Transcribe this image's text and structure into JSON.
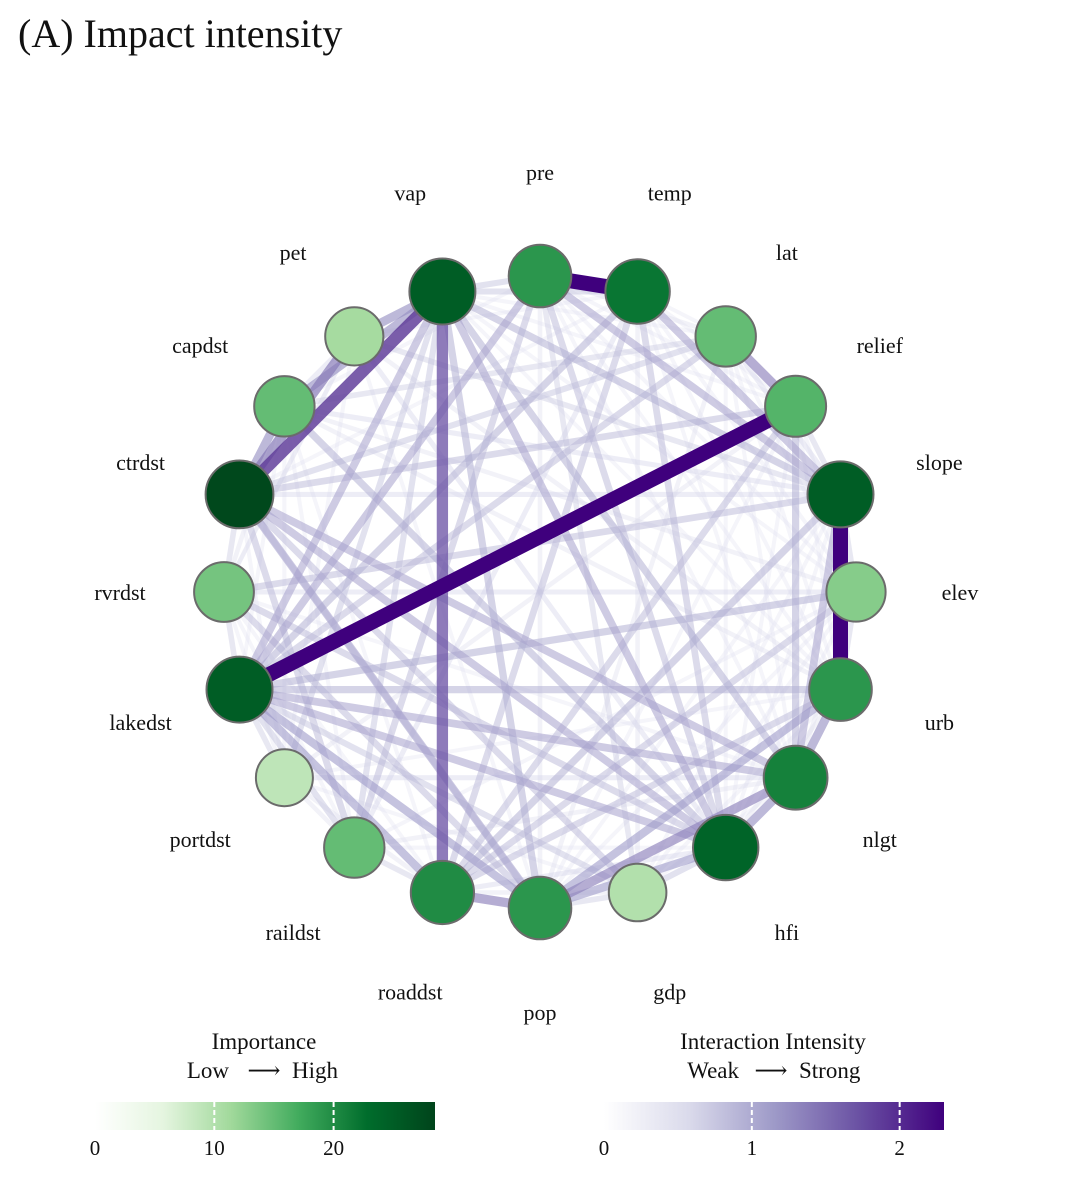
{
  "title": "(A) Impact intensity",
  "chart_data": {
    "type": "network",
    "nodes": [
      {
        "name": "pre",
        "importance": 19
      },
      {
        "name": "temp",
        "importance": 22
      },
      {
        "name": "lat",
        "importance": 15
      },
      {
        "name": "relief",
        "importance": 16
      },
      {
        "name": "slope",
        "importance": 25
      },
      {
        "name": "elev",
        "importance": 13
      },
      {
        "name": "urb",
        "importance": 19
      },
      {
        "name": "nlgt",
        "importance": 21
      },
      {
        "name": "hfi",
        "importance": 24
      },
      {
        "name": "gdp",
        "importance": 10
      },
      {
        "name": "pop",
        "importance": 19
      },
      {
        "name": "roaddst",
        "importance": 20
      },
      {
        "name": "raildst",
        "importance": 15
      },
      {
        "name": "portdst",
        "importance": 9
      },
      {
        "name": "lakedst",
        "importance": 25
      },
      {
        "name": "rvrdst",
        "importance": 14
      },
      {
        "name": "ctrdst",
        "importance": 28
      },
      {
        "name": "capdst",
        "importance": 15
      },
      {
        "name": "pet",
        "importance": 11
      },
      {
        "name": "vap",
        "importance": 25
      }
    ],
    "edges": [
      {
        "a": "pre",
        "b": "temp",
        "value": 2.3
      },
      {
        "a": "relief",
        "b": "lakedst",
        "value": 2.3
      },
      {
        "a": "slope",
        "b": "urb",
        "value": 2.3
      },
      {
        "a": "vap",
        "b": "ctrdst",
        "value": 1.8
      },
      {
        "a": "vap",
        "b": "roaddst",
        "value": 1.6
      },
      {
        "a": "ctrdst",
        "b": "pet",
        "value": 1.3
      },
      {
        "a": "vap",
        "b": "capdst",
        "value": 1.1
      },
      {
        "a": "capdst",
        "b": "ctrdst",
        "value": 1.1
      },
      {
        "a": "vap",
        "b": "pet",
        "value": 1.1
      },
      {
        "a": "lat",
        "b": "relief",
        "value": 1.2
      },
      {
        "a": "urb",
        "b": "nlgt",
        "value": 1.1
      },
      {
        "a": "nlgt",
        "b": "hfi",
        "value": 1.1
      },
      {
        "a": "roaddst",
        "b": "pop",
        "value": 1.2
      },
      {
        "a": "pop",
        "b": "nlgt",
        "value": 1.2
      },
      {
        "a": "pop",
        "b": "urb",
        "value": 1.0
      },
      {
        "a": "pop",
        "b": "hfi",
        "value": 1.0
      },
      {
        "a": "lakedst",
        "b": "roaddst",
        "value": 1.0
      },
      {
        "a": "lakedst",
        "b": "pop",
        "value": 1.0
      },
      {
        "a": "lakedst",
        "b": "hfi",
        "value": 0.9
      },
      {
        "a": "lakedst",
        "b": "nlgt",
        "value": 0.9
      },
      {
        "a": "lakedst",
        "b": "urb",
        "value": 0.8
      },
      {
        "a": "ctrdst",
        "b": "nlgt",
        "value": 0.9
      },
      {
        "a": "ctrdst",
        "b": "hfi",
        "value": 0.9
      },
      {
        "a": "ctrdst",
        "b": "pop",
        "value": 0.9
      },
      {
        "a": "vap",
        "b": "hfi",
        "value": 0.9
      },
      {
        "a": "vap",
        "b": "nlgt",
        "value": 0.8
      },
      {
        "a": "vap",
        "b": "lakedst",
        "value": 0.9
      },
      {
        "a": "vap",
        "b": "slope",
        "value": 0.8
      },
      {
        "a": "vap",
        "b": "pop",
        "value": 0.8
      },
      {
        "a": "pre",
        "b": "slope",
        "value": 0.9
      },
      {
        "a": "pre",
        "b": "lakedst",
        "value": 0.9
      },
      {
        "a": "pre",
        "b": "raildst",
        "value": 0.7
      },
      {
        "a": "pre",
        "b": "hfi",
        "value": 0.7
      },
      {
        "a": "temp",
        "b": "slope",
        "value": 0.9
      },
      {
        "a": "temp",
        "b": "lakedst",
        "value": 0.8
      },
      {
        "a": "temp",
        "b": "roaddst",
        "value": 0.7
      },
      {
        "a": "temp",
        "b": "hfi",
        "value": 0.7
      },
      {
        "a": "relief",
        "b": "nlgt",
        "value": 0.8
      },
      {
        "a": "relief",
        "b": "roaddst",
        "value": 0.7
      },
      {
        "a": "slope",
        "b": "nlgt",
        "value": 0.9
      },
      {
        "a": "slope",
        "b": "roaddst",
        "value": 0.8
      },
      {
        "a": "slope",
        "b": "rvrdst",
        "value": 0.7
      },
      {
        "a": "elev",
        "b": "lakedst",
        "value": 0.8
      },
      {
        "a": "elev",
        "b": "roaddst",
        "value": 0.7
      },
      {
        "a": "urb",
        "b": "roaddst",
        "value": 0.7
      },
      {
        "a": "hfi",
        "b": "capdst",
        "value": 0.8
      },
      {
        "a": "gdp",
        "b": "ctrdst",
        "value": 0.7
      },
      {
        "a": "raildst",
        "b": "ctrdst",
        "value": 0.7
      },
      {
        "a": "raildst",
        "b": "vap",
        "value": 0.6
      },
      {
        "a": "portdst",
        "b": "vap",
        "value": 0.6
      },
      {
        "a": "rvrdst",
        "b": "hfi",
        "value": 0.7
      },
      {
        "a": "rvrdst",
        "b": "pop",
        "value": 0.7
      },
      {
        "a": "lat",
        "b": "lakedst",
        "value": 0.7
      },
      {
        "a": "lat",
        "b": "ctrdst",
        "value": 0.6
      },
      {
        "a": "relief",
        "b": "ctrdst",
        "value": 0.7
      },
      {
        "a": "pet",
        "b": "slope",
        "value": 0.5
      },
      {
        "a": "capdst",
        "b": "lat",
        "value": 0.5
      },
      {
        "a": "gdp",
        "b": "lakedst",
        "value": 0.6
      },
      {
        "a": "gdp",
        "b": "pre",
        "value": 0.5
      },
      {
        "a": "pop",
        "b": "ctrdst",
        "value": 0.6
      },
      {
        "a": "pre",
        "b": "vap",
        "value": 0.6
      },
      {
        "a": "temp",
        "b": "vap",
        "value": 0.6
      },
      {
        "a": "lakedst",
        "b": "raildst",
        "value": 0.6
      },
      {
        "a": "lakedst",
        "b": "portdst",
        "value": 0.5
      },
      {
        "a": "lakedst",
        "b": "rvrdst",
        "value": 0.5
      },
      {
        "a": "hfi",
        "b": "gdp",
        "value": 0.6
      },
      {
        "a": "gdp",
        "b": "pop",
        "value": 0.5
      },
      {
        "a": "raildst",
        "b": "roaddst",
        "value": 0.5
      },
      {
        "a": "elev",
        "b": "urb",
        "value": 0.5
      },
      {
        "a": "slope",
        "b": "elev",
        "value": 0.5
      },
      {
        "a": "ctrdst",
        "b": "slope",
        "value": 0.4
      },
      {
        "a": "capdst",
        "b": "slope",
        "value": 0.4
      },
      {
        "a": "rvrdst",
        "b": "elev",
        "value": 0.4
      },
      {
        "a": "ctrdst",
        "b": "rvrdst",
        "value": 0.5
      },
      {
        "a": "portdst",
        "b": "nlgt",
        "value": 0.4
      },
      {
        "a": "temp",
        "b": "raildst",
        "value": 0.4
      },
      {
        "a": "pet",
        "b": "hfi",
        "value": 0.4
      },
      {
        "a": "urb",
        "b": "capdst",
        "value": 0.3
      },
      {
        "a": "portdst",
        "b": "relief",
        "value": 0.3
      },
      {
        "a": "lat",
        "b": "pop",
        "value": 0.3
      },
      {
        "a": "pre",
        "b": "pop",
        "value": 0.3
      },
      {
        "a": "temp",
        "b": "gdp",
        "value": 0.3
      },
      {
        "a": "elev",
        "b": "capdst",
        "value": 0.3
      },
      {
        "a": "urb",
        "b": "pet",
        "value": 0.3
      },
      {
        "a": "nlgt",
        "b": "raildst",
        "value": 0.3
      },
      {
        "a": "lat",
        "b": "slope",
        "value": 0.4
      },
      {
        "a": "relief",
        "b": "slope",
        "value": 0.5
      },
      {
        "a": "roaddst",
        "b": "hfi",
        "value": 0.4
      },
      {
        "a": "pet",
        "b": "capdst",
        "value": 0.4
      },
      {
        "a": "rvrdst",
        "b": "capdst",
        "value": 0.3
      },
      {
        "a": "raildst",
        "b": "portdst",
        "value": 0.3
      },
      {
        "a": "portdst",
        "b": "roaddst",
        "value": 0.3
      },
      {
        "a": "pre",
        "b": "lat",
        "value": 0.3
      },
      {
        "a": "hfi",
        "b": "urb",
        "value": 0.3
      },
      {
        "a": "elev",
        "b": "nlgt",
        "value": 0.3
      },
      {
        "a": "pet",
        "b": "rvrdst",
        "value": 0.3
      },
      {
        "a": "gdp",
        "b": "roaddst",
        "value": 0.3
      },
      {
        "a": "pre",
        "b": "elev",
        "value": 0.2
      },
      {
        "a": "temp",
        "b": "urb",
        "value": 0.2
      },
      {
        "a": "lat",
        "b": "hfi",
        "value": 0.2
      },
      {
        "a": "relief",
        "b": "pop",
        "value": 0.2
      },
      {
        "a": "slope",
        "b": "gdp",
        "value": 0.2
      },
      {
        "a": "elev",
        "b": "raildst",
        "value": 0.2
      },
      {
        "a": "urb",
        "b": "portdst",
        "value": 0.2
      },
      {
        "a": "nlgt",
        "b": "rvrdst",
        "value": 0.2
      },
      {
        "a": "hfi",
        "b": "raildst",
        "value": 0.2
      },
      {
        "a": "gdp",
        "b": "portdst",
        "value": 0.2
      },
      {
        "a": "pop",
        "b": "pet",
        "value": 0.2
      },
      {
        "a": "roaddst",
        "b": "capdst",
        "value": 0.2
      },
      {
        "a": "raildst",
        "b": "rvrdst",
        "value": 0.2
      },
      {
        "a": "portdst",
        "b": "ctrdst",
        "value": 0.2
      },
      {
        "a": "lakedst",
        "b": "capdst",
        "value": 0.2
      },
      {
        "a": "rvrdst",
        "b": "pet",
        "value": 0.2
      },
      {
        "a": "ctrdst",
        "b": "temp",
        "value": 0.2
      },
      {
        "a": "capdst",
        "b": "pre",
        "value": 0.2
      },
      {
        "a": "pet",
        "b": "temp",
        "value": 0.2
      },
      {
        "a": "vap",
        "b": "lat",
        "value": 0.2
      },
      {
        "a": "vap",
        "b": "relief",
        "value": 0.2
      },
      {
        "a": "vap",
        "b": "elev",
        "value": 0.2
      },
      {
        "a": "vap",
        "b": "urb",
        "value": 0.2
      },
      {
        "a": "pre",
        "b": "relief",
        "value": 0.2
      },
      {
        "a": "pre",
        "b": "urb",
        "value": 0.2
      },
      {
        "a": "pre",
        "b": "nlgt",
        "value": 0.2
      },
      {
        "a": "temp",
        "b": "lat",
        "value": 0.2
      },
      {
        "a": "temp",
        "b": "relief",
        "value": 0.2
      },
      {
        "a": "temp",
        "b": "elev",
        "value": 0.2
      },
      {
        "a": "temp",
        "b": "nlgt",
        "value": 0.2
      },
      {
        "a": "lat",
        "b": "elev",
        "value": 0.2
      },
      {
        "a": "lat",
        "b": "urb",
        "value": 0.2
      },
      {
        "a": "lat",
        "b": "nlgt",
        "value": 0.2
      },
      {
        "a": "relief",
        "b": "elev",
        "value": 0.2
      },
      {
        "a": "relief",
        "b": "urb",
        "value": 0.2
      },
      {
        "a": "relief",
        "b": "hfi",
        "value": 0.2
      },
      {
        "a": "slope",
        "b": "hfi",
        "value": 0.2
      },
      {
        "a": "slope",
        "b": "pop",
        "value": 0.2
      },
      {
        "a": "elev",
        "b": "hfi",
        "value": 0.2
      },
      {
        "a": "elev",
        "b": "gdp",
        "value": 0.2
      },
      {
        "a": "elev",
        "b": "pop",
        "value": 0.2
      },
      {
        "a": "urb",
        "b": "gdp",
        "value": 0.2
      },
      {
        "a": "nlgt",
        "b": "gdp",
        "value": 0.2
      },
      {
        "a": "roaddst",
        "b": "rvrdst",
        "value": 0.2
      },
      {
        "a": "raildst",
        "b": "capdst",
        "value": 0.2
      },
      {
        "a": "portdst",
        "b": "rvrdst",
        "value": 0.2
      },
      {
        "a": "portdst",
        "b": "capdst",
        "value": 0.2
      },
      {
        "a": "portdst",
        "b": "pet",
        "value": 0.2
      }
    ],
    "legends": [
      {
        "title": "Importance",
        "left_text": "Low",
        "arrow": "⟶",
        "right_text": "High",
        "ticks": [
          {
            "value": 0,
            "label": "0"
          },
          {
            "value": 10,
            "label": "10"
          },
          {
            "value": 20,
            "label": "20"
          }
        ],
        "range": [
          0,
          28.5
        ],
        "colors": [
          "#ffffff",
          "#e5f5e0",
          "#a1d99b",
          "#41ab5d",
          "#006d2c",
          "#00441b"
        ]
      },
      {
        "title": "Interaction Intensity",
        "left_text": "Weak",
        "arrow": "⟶",
        "right_text": "Strong",
        "ticks": [
          {
            "value": 0,
            "label": "0"
          },
          {
            "value": 1,
            "label": "1"
          },
          {
            "value": 2,
            "label": "2"
          }
        ],
        "range": [
          0,
          2.3
        ],
        "colors": [
          "#ffffff",
          "#dadaeb",
          "#9e9ac8",
          "#6a51a3",
          "#3f007d"
        ]
      }
    ]
  }
}
